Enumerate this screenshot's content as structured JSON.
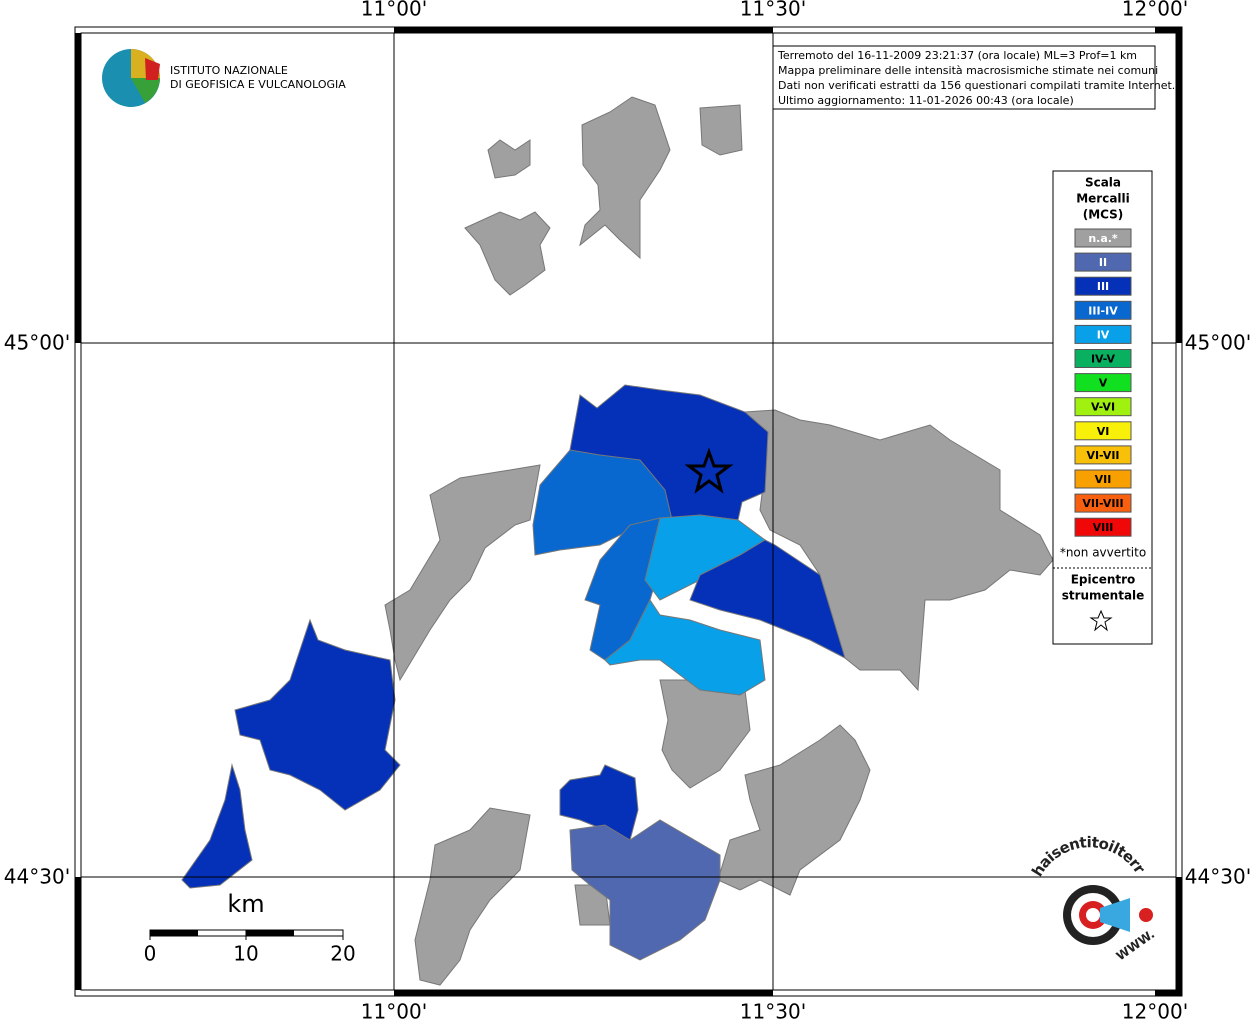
{
  "header": {
    "lines": [
      "Terremoto del 16-11-2009 23:21:37 (ora locale) ML=3 Prof=1 km",
      "Mappa preliminare delle intensità macrosismiche stimate nei comuni",
      "Dati non verificati estratti da 156 questionari compilati tramite Internet.",
      "Ultimo aggiornamento: 11-01-2026 00:43 (ora locale)"
    ]
  },
  "institute": {
    "lines": [
      "ISTITUTO NAZIONALE",
      "DI GEOFISICA E VULCANOLOGIA"
    ]
  },
  "axes": {
    "top": [
      "11°00'",
      "11°30'",
      "12°00'"
    ],
    "bottom": [
      "11°00'",
      "11°30'",
      "12°00'"
    ],
    "left": [
      "45°00'",
      "44°30'"
    ],
    "right": [
      "45°00'",
      "44°30'"
    ]
  },
  "legend": {
    "title": [
      "Scala",
      "Mercalli",
      "(MCS)"
    ],
    "items": [
      {
        "label": "n.a.*",
        "color": "#a0a0a0"
      },
      {
        "label": "II",
        "color": "#5068b0"
      },
      {
        "label": "III",
        "color": "#0530b8"
      },
      {
        "label": "III-IV",
        "color": "#0868d0"
      },
      {
        "label": "IV",
        "color": "#08a0e8"
      },
      {
        "label": "IV-V",
        "color": "#08b060"
      },
      {
        "label": "V",
        "color": "#10e020"
      },
      {
        "label": "V-VI",
        "color": "#a0f010"
      },
      {
        "label": "VI",
        "color": "#f8f008"
      },
      {
        "label": "VI-VII",
        "color": "#f8c008"
      },
      {
        "label": "VII",
        "color": "#f8a000"
      },
      {
        "label": "VII-VIII",
        "color": "#f86010"
      },
      {
        "label": "VIII",
        "color": "#f00808"
      }
    ],
    "note": "*non avvertito",
    "epicenter": [
      "Epicentro",
      "strumentale"
    ]
  },
  "scalebar": {
    "unit": "km",
    "ticks": [
      "0",
      "10",
      "20"
    ]
  },
  "site_logo": {
    "text": "haisentitoilterremoto.it",
    "www": "WWW."
  }
}
